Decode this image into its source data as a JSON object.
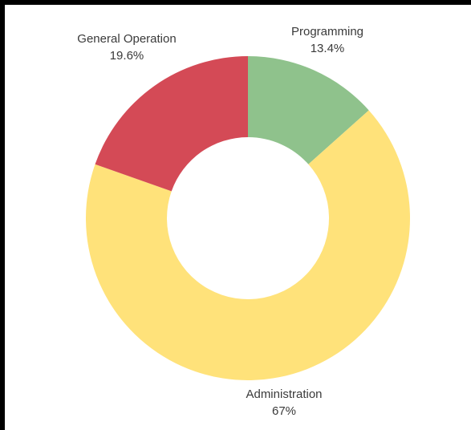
{
  "chart_data": {
    "type": "pie",
    "variant": "donut",
    "title": "",
    "legend": "none",
    "slices": [
      {
        "label": "Programming",
        "value": 13.4,
        "display": "13.4%",
        "color": "#8fc28c"
      },
      {
        "label": "Administration",
        "value": 67,
        "display": "67%",
        "color": "#ffe27a"
      },
      {
        "label": "General Operation",
        "value": 19.6,
        "display": "19.6%",
        "color": "#d44a56"
      }
    ]
  }
}
